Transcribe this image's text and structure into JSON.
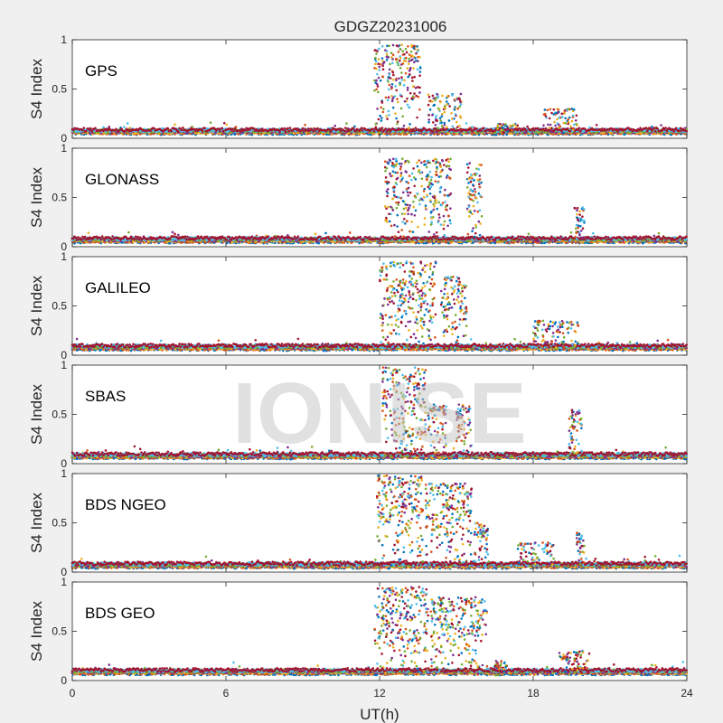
{
  "chart_data": {
    "type": "scatter",
    "title": "GDGZ20231006",
    "xlabel": "UT(h)",
    "ylabel": "S4 Index",
    "xlim": [
      0,
      24
    ],
    "ylim": [
      0,
      1
    ],
    "x_ticks": [
      0,
      6,
      12,
      18,
      24
    ],
    "y_ticks": [
      0,
      0.5,
      1
    ],
    "y_tick_labels": [
      "0",
      "0.5",
      "1"
    ],
    "grid": false,
    "watermark": "IONISE",
    "series_colors": [
      "#0072BD",
      "#D95319",
      "#EDB120",
      "#7E2F8E",
      "#77AC30",
      "#4DBEEE",
      "#A2142F"
    ],
    "panels": [
      {
        "name": "GPS",
        "baseline": 0.07,
        "disturbances": [
          {
            "t_start": 11.8,
            "t_end": 13.6,
            "peak": 0.95
          },
          {
            "t_start": 13.9,
            "t_end": 15.2,
            "peak": 0.45
          },
          {
            "t_start": 16.6,
            "t_end": 17.4,
            "peak": 0.15
          },
          {
            "t_start": 18.4,
            "t_end": 19.7,
            "peak": 0.3
          }
        ]
      },
      {
        "name": "GLONASS",
        "baseline": 0.07,
        "disturbances": [
          {
            "t_start": 12.2,
            "t_end": 14.8,
            "peak": 0.9
          },
          {
            "t_start": 15.4,
            "t_end": 16.0,
            "peak": 0.85
          },
          {
            "t_start": 19.6,
            "t_end": 20.0,
            "peak": 0.4
          }
        ]
      },
      {
        "name": "GALILEO",
        "baseline": 0.08,
        "disturbances": [
          {
            "t_start": 12.0,
            "t_end": 14.2,
            "peak": 0.95
          },
          {
            "t_start": 14.4,
            "t_end": 15.4,
            "peak": 0.8
          },
          {
            "t_start": 18.0,
            "t_end": 19.8,
            "peak": 0.35
          }
        ]
      },
      {
        "name": "SBAS",
        "baseline": 0.08,
        "disturbances": [
          {
            "t_start": 12.1,
            "t_end": 13.8,
            "peak": 0.98
          },
          {
            "t_start": 13.9,
            "t_end": 14.6,
            "peak": 0.6
          },
          {
            "t_start": 15.0,
            "t_end": 15.6,
            "peak": 0.6
          },
          {
            "t_start": 19.4,
            "t_end": 19.9,
            "peak": 0.55
          }
        ]
      },
      {
        "name": "BDS NGEO",
        "baseline": 0.07,
        "disturbances": [
          {
            "t_start": 11.9,
            "t_end": 13.7,
            "peak": 0.98
          },
          {
            "t_start": 13.8,
            "t_end": 15.6,
            "peak": 0.9
          },
          {
            "t_start": 15.7,
            "t_end": 16.3,
            "peak": 0.5
          },
          {
            "t_start": 17.4,
            "t_end": 18.8,
            "peak": 0.3
          },
          {
            "t_start": 19.7,
            "t_end": 20.0,
            "peak": 0.4
          }
        ]
      },
      {
        "name": "BDS GEO",
        "baseline": 0.09,
        "disturbances": [
          {
            "t_start": 11.8,
            "t_end": 13.9,
            "peak": 0.95
          },
          {
            "t_start": 14.0,
            "t_end": 16.2,
            "peak": 0.85
          },
          {
            "t_start": 16.5,
            "t_end": 17.0,
            "peak": 0.2
          },
          {
            "t_start": 19.0,
            "t_end": 20.2,
            "peak": 0.3
          }
        ]
      }
    ]
  }
}
